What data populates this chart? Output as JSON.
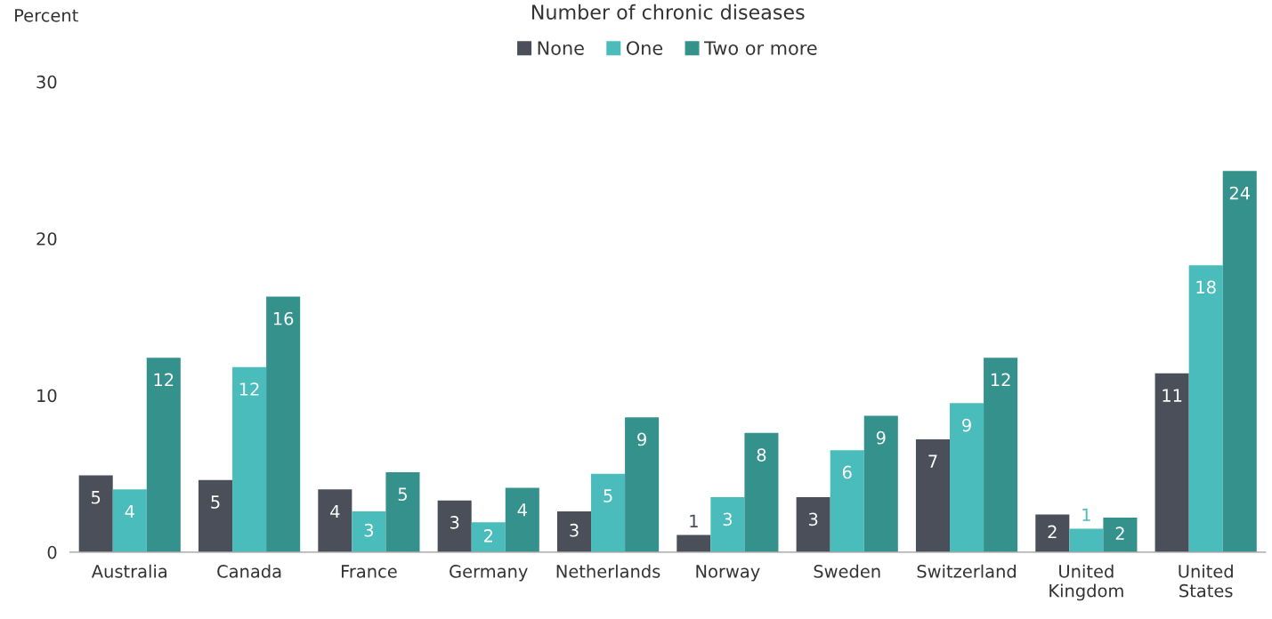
{
  "chart_data": {
    "type": "bar",
    "ylabel": "Percent",
    "legend_title": "Number of chronic diseases",
    "legend": "top",
    "categories": [
      "Australia",
      "Canada",
      "France",
      "Germany",
      "Netherlands",
      "Norway",
      "Sweden",
      "Switzerland",
      "United\nKingdom",
      "United\nStates"
    ],
    "series": [
      {
        "name": "None",
        "color": "#4a4f59",
        "values": [
          4.9,
          4.6,
          4.0,
          3.3,
          2.6,
          1.1,
          3.5,
          7.2,
          2.4,
          11.4
        ],
        "value_labels": [
          "5",
          "5",
          "4",
          "3",
          "3",
          "1",
          "3",
          "7",
          "2",
          "11"
        ]
      },
      {
        "name": "One",
        "color": "#4bbcbc",
        "values": [
          4.0,
          11.8,
          2.6,
          1.9,
          5.0,
          3.5,
          6.5,
          9.5,
          1.5,
          18.3
        ],
        "value_labels": [
          "4",
          "12",
          "3",
          "2",
          "5",
          "3",
          "6",
          "9",
          "1",
          "18"
        ]
      },
      {
        "name": "Two or more",
        "color": "#35918c",
        "values": [
          12.4,
          16.3,
          5.1,
          4.1,
          8.6,
          7.6,
          8.7,
          12.4,
          2.2,
          24.3
        ],
        "value_labels": [
          "12",
          "16",
          "5",
          "4",
          "9",
          "8",
          "9",
          "12",
          "2",
          "24"
        ]
      }
    ],
    "ylim": [
      0,
      30
    ],
    "yticks": [
      0,
      10,
      20,
      30
    ],
    "grid": false
  }
}
